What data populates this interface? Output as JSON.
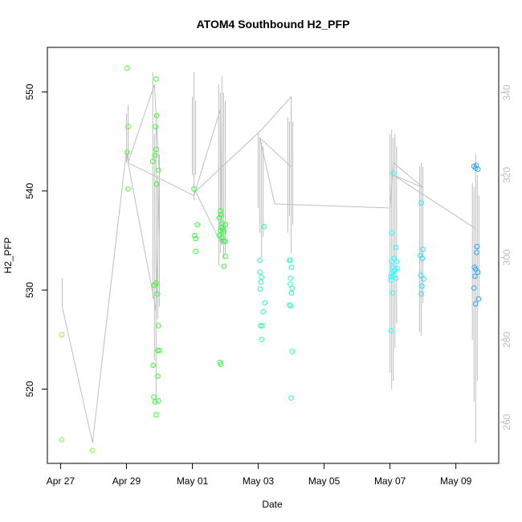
{
  "chart_data": {
    "type": "scatter",
    "title": "ATOM4 Southbound H2_PFP",
    "xlabel": "Date",
    "ylabel": "H2_PFP",
    "x_ticks": [
      "Apr 27",
      "Apr 29",
      "May 01",
      "May 03",
      "May 05",
      "May 07",
      "May 09"
    ],
    "x_tick_days": [
      0,
      2,
      4,
      6,
      8,
      10,
      12
    ],
    "xlim_days": [
      -0.4,
      13.3
    ],
    "ylim": [
      512.5,
      554.5
    ],
    "y_ticks": [
      520,
      530,
      540,
      550
    ],
    "y2_lim": [
      250,
      351
    ],
    "y2_ticks": [
      260,
      280,
      300,
      320,
      340
    ],
    "colors": {
      "axis": "#000000",
      "secondary": "#bebebe"
    },
    "points": [
      {
        "x": 0.04,
        "y": 525.5,
        "color": "#7fff3f"
      },
      {
        "x": 0.04,
        "y": 514.9,
        "color": "#7fff3f"
      },
      {
        "x": 0.97,
        "y": 513.8,
        "color": "#7fff3f"
      },
      {
        "x": 2.02,
        "y": 552.4,
        "color": "#4cff2a"
      },
      {
        "x": 2.05,
        "y": 546.5,
        "color": "#4cff2a"
      },
      {
        "x": 2.02,
        "y": 543.9,
        "color": "#4cff2a"
      },
      {
        "x": 2.05,
        "y": 540.2,
        "color": "#4cff2a"
      },
      {
        "x": 2.9,
        "y": 551.3,
        "color": "#36ff2a"
      },
      {
        "x": 2.92,
        "y": 547.6,
        "color": "#36ff2a"
      },
      {
        "x": 2.88,
        "y": 546.5,
        "color": "#36ff2a"
      },
      {
        "x": 2.9,
        "y": 544.2,
        "color": "#36ff2a"
      },
      {
        "x": 2.87,
        "y": 543.6,
        "color": "#36ff2a"
      },
      {
        "x": 2.8,
        "y": 543.0,
        "color": "#36ff2a"
      },
      {
        "x": 2.97,
        "y": 542.1,
        "color": "#36ff2a"
      },
      {
        "x": 2.91,
        "y": 540.7,
        "color": "#36ff2a"
      },
      {
        "x": 2.84,
        "y": 530.5,
        "color": "#36ff2a"
      },
      {
        "x": 2.9,
        "y": 530.7,
        "color": "#36ff2a"
      },
      {
        "x": 2.93,
        "y": 529.6,
        "color": "#36ff2a"
      },
      {
        "x": 2.97,
        "y": 526.4,
        "color": "#36ff2a"
      },
      {
        "x": 2.95,
        "y": 523.9,
        "color": "#36ff2a"
      },
      {
        "x": 3.0,
        "y": 523.9,
        "color": "#36ff2a"
      },
      {
        "x": 2.81,
        "y": 522.4,
        "color": "#36ff2a"
      },
      {
        "x": 2.95,
        "y": 521.3,
        "color": "#36ff2a"
      },
      {
        "x": 2.83,
        "y": 519.2,
        "color": "#36ff2a"
      },
      {
        "x": 2.87,
        "y": 518.7,
        "color": "#36ff2a"
      },
      {
        "x": 2.97,
        "y": 518.8,
        "color": "#36ff2a"
      },
      {
        "x": 2.9,
        "y": 517.4,
        "color": "#36ff2a"
      },
      {
        "x": 4.05,
        "y": 540.2,
        "color": "#2aff2a"
      },
      {
        "x": 4.15,
        "y": 536.6,
        "color": "#2aff2a"
      },
      {
        "x": 4.07,
        "y": 535.5,
        "color": "#2aff2a"
      },
      {
        "x": 4.1,
        "y": 535.2,
        "color": "#2aff2a"
      },
      {
        "x": 4.1,
        "y": 533.9,
        "color": "#2aff2a"
      },
      {
        "x": 4.85,
        "y": 538.0,
        "color": "#2aff3a"
      },
      {
        "x": 4.87,
        "y": 537.6,
        "color": "#2aff3a"
      },
      {
        "x": 4.82,
        "y": 537.3,
        "color": "#2aff3a"
      },
      {
        "x": 4.9,
        "y": 536.7,
        "color": "#2aff3a"
      },
      {
        "x": 5.0,
        "y": 536.6,
        "color": "#2aff3a"
      },
      {
        "x": 4.88,
        "y": 536.3,
        "color": "#2aff3a"
      },
      {
        "x": 4.93,
        "y": 536.1,
        "color": "#2aff3a"
      },
      {
        "x": 4.85,
        "y": 536.0,
        "color": "#2aff3a"
      },
      {
        "x": 4.96,
        "y": 535.9,
        "color": "#2aff3a"
      },
      {
        "x": 4.82,
        "y": 535.5,
        "color": "#2aff3a"
      },
      {
        "x": 4.9,
        "y": 535.3,
        "color": "#2aff3a"
      },
      {
        "x": 4.94,
        "y": 535.0,
        "color": "#2aff3a"
      },
      {
        "x": 4.99,
        "y": 534.9,
        "color": "#2aff3a"
      },
      {
        "x": 5.0,
        "y": 533.4,
        "color": "#2aff3a"
      },
      {
        "x": 4.96,
        "y": 532.4,
        "color": "#2aff3a"
      },
      {
        "x": 4.84,
        "y": 522.7,
        "color": "#2aff3a"
      },
      {
        "x": 4.86,
        "y": 522.5,
        "color": "#2aff3a"
      },
      {
        "x": 6.05,
        "y": 533.0,
        "color": "#2affa0"
      },
      {
        "x": 6.05,
        "y": 531.8,
        "color": "#2affa0"
      },
      {
        "x": 6.1,
        "y": 531.3,
        "color": "#2affa0"
      },
      {
        "x": 6.08,
        "y": 530.8,
        "color": "#2affa0"
      },
      {
        "x": 6.06,
        "y": 530.1,
        "color": "#2affa0"
      },
      {
        "x": 6.2,
        "y": 528.7,
        "color": "#2affa0"
      },
      {
        "x": 6.15,
        "y": 527.8,
        "color": "#2affa0"
      },
      {
        "x": 6.07,
        "y": 526.4,
        "color": "#2affa0"
      },
      {
        "x": 6.12,
        "y": 526.4,
        "color": "#2affa0"
      },
      {
        "x": 6.1,
        "y": 525.0,
        "color": "#2affa0"
      },
      {
        "x": 6.18,
        "y": 536.4,
        "color": "#2affa0"
      },
      {
        "x": 6.95,
        "y": 533.0,
        "color": "#2affb4"
      },
      {
        "x": 6.97,
        "y": 533.0,
        "color": "#2affb4"
      },
      {
        "x": 7.01,
        "y": 532.3,
        "color": "#2affb4"
      },
      {
        "x": 6.98,
        "y": 531.2,
        "color": "#2affb4"
      },
      {
        "x": 7.03,
        "y": 530.2,
        "color": "#2affb4"
      },
      {
        "x": 7.01,
        "y": 529.7,
        "color": "#2affb4"
      },
      {
        "x": 6.97,
        "y": 530.6,
        "color": "#2affb4"
      },
      {
        "x": 6.95,
        "y": 528.5,
        "color": "#2affb4"
      },
      {
        "x": 6.98,
        "y": 528.4,
        "color": "#2affb4"
      },
      {
        "x": 7.03,
        "y": 523.8,
        "color": "#2affb4"
      },
      {
        "x": 7.0,
        "y": 519.1,
        "color": "#2affb4"
      },
      {
        "x": 10.05,
        "y": 535.8,
        "color": "#2affff"
      },
      {
        "x": 10.1,
        "y": 541.8,
        "color": "#2affff"
      },
      {
        "x": 10.18,
        "y": 534.3,
        "color": "#2affff"
      },
      {
        "x": 10.12,
        "y": 533.2,
        "color": "#2affff"
      },
      {
        "x": 10.05,
        "y": 532.9,
        "color": "#2affff"
      },
      {
        "x": 10.2,
        "y": 532.9,
        "color": "#2affff"
      },
      {
        "x": 10.08,
        "y": 532.3,
        "color": "#2affff"
      },
      {
        "x": 10.15,
        "y": 532.1,
        "color": "#2affff"
      },
      {
        "x": 10.22,
        "y": 532.2,
        "color": "#2affff"
      },
      {
        "x": 10.12,
        "y": 531.9,
        "color": "#2affff"
      },
      {
        "x": 10.06,
        "y": 531.7,
        "color": "#2affff"
      },
      {
        "x": 10.1,
        "y": 531.4,
        "color": "#2affff"
      },
      {
        "x": 10.02,
        "y": 531.4,
        "color": "#2affff"
      },
      {
        "x": 10.17,
        "y": 531.2,
        "color": "#2affff"
      },
      {
        "x": 10.03,
        "y": 531.0,
        "color": "#2affff"
      },
      {
        "x": 10.08,
        "y": 529.7,
        "color": "#2affff"
      },
      {
        "x": 10.03,
        "y": 525.9,
        "color": "#2affff"
      },
      {
        "x": 10.95,
        "y": 538.8,
        "color": "#2ae0ff"
      },
      {
        "x": 11.0,
        "y": 534.1,
        "color": "#2ae0ff"
      },
      {
        "x": 10.92,
        "y": 533.5,
        "color": "#2ae0ff"
      },
      {
        "x": 10.98,
        "y": 533.2,
        "color": "#2ae0ff"
      },
      {
        "x": 10.93,
        "y": 531.5,
        "color": "#2ae0ff"
      },
      {
        "x": 11.02,
        "y": 531.1,
        "color": "#2ae0ff"
      },
      {
        "x": 10.97,
        "y": 530.4,
        "color": "#2ae0ff"
      },
      {
        "x": 10.95,
        "y": 529.6,
        "color": "#2ae0ff"
      },
      {
        "x": 12.55,
        "y": 542.5,
        "color": "#2aa8ff"
      },
      {
        "x": 12.62,
        "y": 542.6,
        "color": "#2aa8ff"
      },
      {
        "x": 12.67,
        "y": 542.2,
        "color": "#2aa8ff"
      },
      {
        "x": 12.6,
        "y": 542.3,
        "color": "#2aa8ff"
      },
      {
        "x": 12.64,
        "y": 534.4,
        "color": "#2aa8ff"
      },
      {
        "x": 12.63,
        "y": 533.8,
        "color": "#2aa8ff"
      },
      {
        "x": 12.56,
        "y": 532.3,
        "color": "#2aa8ff"
      },
      {
        "x": 12.6,
        "y": 532.1,
        "color": "#2aa8ff"
      },
      {
        "x": 12.67,
        "y": 531.8,
        "color": "#2aa8ff"
      },
      {
        "x": 12.58,
        "y": 531.4,
        "color": "#2aa8ff"
      },
      {
        "x": 12.55,
        "y": 530.2,
        "color": "#2aa8ff"
      },
      {
        "x": 12.69,
        "y": 529.1,
        "color": "#2aa8ff"
      },
      {
        "x": 12.6,
        "y": 528.6,
        "color": "#2aa8ff"
      }
    ],
    "secondary_path_y2": [
      [
        0.05,
        295
      ],
      [
        0.05,
        288
      ],
      [
        0.97,
        255
      ],
      [
        2.0,
        326
      ],
      [
        2.05,
        323
      ],
      [
        2.85,
        342
      ],
      [
        3.0,
        320
      ],
      [
        2.9,
        287
      ],
      [
        2.05,
        323
      ],
      [
        4.05,
        315
      ],
      [
        4.85,
        336
      ],
      [
        4.9,
        303
      ],
      [
        4.1,
        316
      ],
      [
        6.1,
        331
      ],
      [
        7.0,
        339
      ],
      [
        7.0,
        322
      ],
      [
        6.05,
        329
      ],
      [
        6.5,
        313
      ],
      [
        10.0,
        312
      ],
      [
        10.1,
        323
      ],
      [
        11.0,
        317
      ],
      [
        10.1,
        320
      ],
      [
        12.6,
        307
      ]
    ],
    "secondary_spikes_y2": [
      [
        2.0,
        335,
        323
      ],
      [
        2.05,
        337,
        323
      ],
      [
        2.8,
        345,
        290
      ],
      [
        2.85,
        330,
        275
      ],
      [
        2.9,
        332,
        265
      ],
      [
        2.95,
        320,
        285
      ],
      [
        3.0,
        325,
        288
      ],
      [
        4.0,
        339,
        320
      ],
      [
        4.05,
        345,
        314
      ],
      [
        4.1,
        338,
        320
      ],
      [
        4.8,
        342,
        298
      ],
      [
        4.85,
        340,
        301
      ],
      [
        4.9,
        344,
        305
      ],
      [
        4.95,
        340,
        300
      ],
      [
        5.0,
        338,
        301
      ],
      [
        6.0,
        330,
        312
      ],
      [
        6.05,
        329,
        306
      ],
      [
        6.1,
        328,
        300
      ],
      [
        6.15,
        327,
        305
      ],
      [
        6.9,
        334,
        306
      ],
      [
        6.95,
        333,
        310
      ],
      [
        7.0,
        336,
        301
      ],
      [
        7.05,
        333,
        308
      ],
      [
        10.0,
        330,
        272
      ],
      [
        10.05,
        331,
        268
      ],
      [
        10.1,
        329,
        270
      ],
      [
        10.15,
        330,
        278
      ],
      [
        10.2,
        327,
        284
      ],
      [
        10.9,
        322,
        282
      ],
      [
        10.95,
        323,
        281
      ],
      [
        11.0,
        322,
        289
      ],
      [
        12.5,
        318,
        280
      ],
      [
        12.55,
        317,
        265
      ],
      [
        12.6,
        325,
        255
      ],
      [
        12.65,
        320,
        270
      ],
      [
        12.7,
        315,
        290
      ]
    ]
  }
}
